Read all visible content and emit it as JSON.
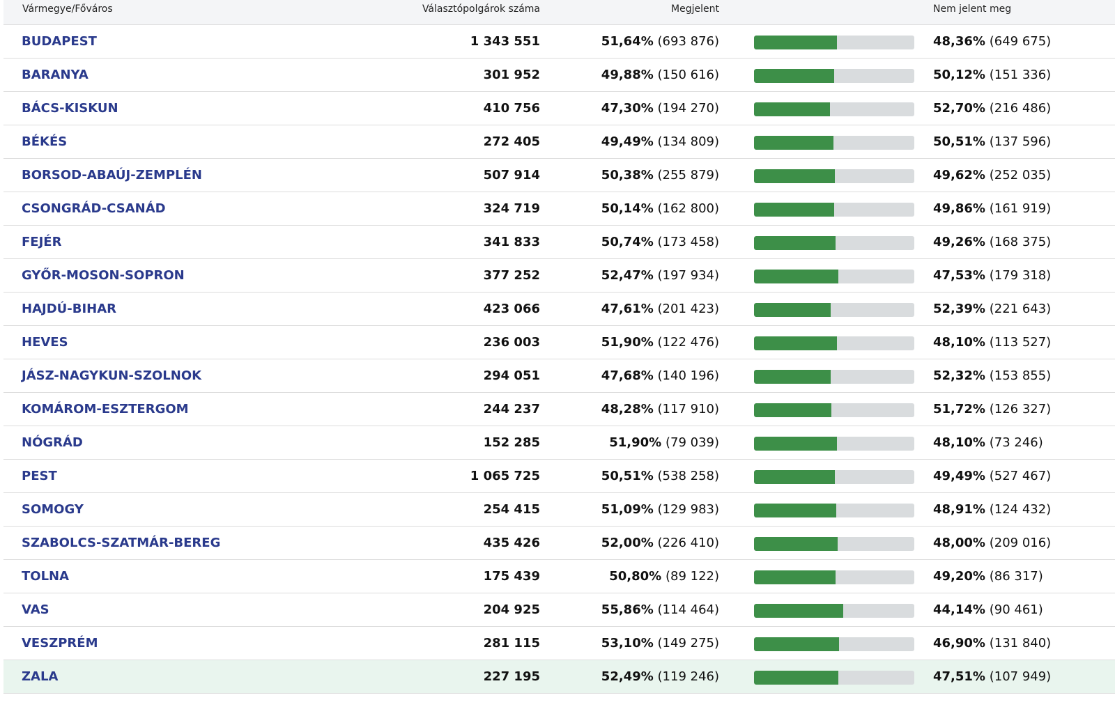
{
  "header": {
    "county": "Vármegye/Főváros",
    "voters": "Választópolgárok száma",
    "present": "Megjelent",
    "absent": "Nem jelent meg"
  },
  "rows": [
    {
      "name": "BUDAPEST",
      "voters": "1 343 551",
      "present_pct": "51,64%",
      "present_cnt": "(693 876)",
      "absent_pct": "48,36%",
      "absent_cnt": "(649 675)",
      "turnout": 51.64
    },
    {
      "name": "BARANYA",
      "voters": "301 952",
      "present_pct": "49,88%",
      "present_cnt": "(150 616)",
      "absent_pct": "50,12%",
      "absent_cnt": "(151 336)",
      "turnout": 49.88
    },
    {
      "name": "BÁCS-KISKUN",
      "voters": "410 756",
      "present_pct": "47,30%",
      "present_cnt": "(194 270)",
      "absent_pct": "52,70%",
      "absent_cnt": "(216 486)",
      "turnout": 47.3
    },
    {
      "name": "BÉKÉS",
      "voters": "272 405",
      "present_pct": "49,49%",
      "present_cnt": "(134 809)",
      "absent_pct": "50,51%",
      "absent_cnt": "(137 596)",
      "turnout": 49.49
    },
    {
      "name": "BORSOD-ABAÚJ-ZEMPLÉN",
      "voters": "507 914",
      "present_pct": "50,38%",
      "present_cnt": "(255 879)",
      "absent_pct": "49,62%",
      "absent_cnt": "(252 035)",
      "turnout": 50.38
    },
    {
      "name": "CSONGRÁD-CSANÁD",
      "voters": "324 719",
      "present_pct": "50,14%",
      "present_cnt": "(162 800)",
      "absent_pct": "49,86%",
      "absent_cnt": "(161 919)",
      "turnout": 50.14
    },
    {
      "name": "FEJÉR",
      "voters": "341 833",
      "present_pct": "50,74%",
      "present_cnt": "(173 458)",
      "absent_pct": "49,26%",
      "absent_cnt": "(168 375)",
      "turnout": 50.74
    },
    {
      "name": "GYŐR-MOSON-SOPRON",
      "voters": "377 252",
      "present_pct": "52,47%",
      "present_cnt": "(197 934)",
      "absent_pct": "47,53%",
      "absent_cnt": "(179 318)",
      "turnout": 52.47
    },
    {
      "name": "HAJDÚ-BIHAR",
      "voters": "423 066",
      "present_pct": "47,61%",
      "present_cnt": "(201 423)",
      "absent_pct": "52,39%",
      "absent_cnt": "(221 643)",
      "turnout": 47.61
    },
    {
      "name": "HEVES",
      "voters": "236 003",
      "present_pct": "51,90%",
      "present_cnt": "(122 476)",
      "absent_pct": "48,10%",
      "absent_cnt": "(113 527)",
      "turnout": 51.9
    },
    {
      "name": "JÁSZ-NAGYKUN-SZOLNOK",
      "voters": "294 051",
      "present_pct": "47,68%",
      "present_cnt": "(140 196)",
      "absent_pct": "52,32%",
      "absent_cnt": "(153 855)",
      "turnout": 47.68
    },
    {
      "name": "KOMÁROM-ESZTERGOM",
      "voters": "244 237",
      "present_pct": "48,28%",
      "present_cnt": "(117 910)",
      "absent_pct": "51,72%",
      "absent_cnt": "(126 327)",
      "turnout": 48.28
    },
    {
      "name": "NÓGRÁD",
      "voters": "152 285",
      "present_pct": "51,90%",
      "present_cnt": "(79 039)",
      "absent_pct": "48,10%",
      "absent_cnt": "(73 246)",
      "turnout": 51.9
    },
    {
      "name": "PEST",
      "voters": "1 065 725",
      "present_pct": "50,51%",
      "present_cnt": "(538 258)",
      "absent_pct": "49,49%",
      "absent_cnt": "(527 467)",
      "turnout": 50.51
    },
    {
      "name": "SOMOGY",
      "voters": "254 415",
      "present_pct": "51,09%",
      "present_cnt": "(129 983)",
      "absent_pct": "48,91%",
      "absent_cnt": "(124 432)",
      "turnout": 51.09
    },
    {
      "name": "SZABOLCS-SZATMÁR-BEREG",
      "voters": "435 426",
      "present_pct": "52,00%",
      "present_cnt": "(226 410)",
      "absent_pct": "48,00%",
      "absent_cnt": "(209 016)",
      "turnout": 52.0
    },
    {
      "name": "TOLNA",
      "voters": "175 439",
      "present_pct": "50,80%",
      "present_cnt": "(89 122)",
      "absent_pct": "49,20%",
      "absent_cnt": "(86 317)",
      "turnout": 50.8
    },
    {
      "name": "VAS",
      "voters": "204 925",
      "present_pct": "55,86%",
      "present_cnt": "(114 464)",
      "absent_pct": "44,14%",
      "absent_cnt": "(90 461)",
      "turnout": 55.86
    },
    {
      "name": "VESZPRÉM",
      "voters": "281 115",
      "present_pct": "53,10%",
      "present_cnt": "(149 275)",
      "absent_pct": "46,90%",
      "absent_cnt": "(131 840)",
      "turnout": 53.1
    },
    {
      "name": "ZALA",
      "voters": "227 195",
      "present_pct": "52,49%",
      "present_cnt": "(119 246)",
      "absent_pct": "47,51%",
      "absent_cnt": "(107 949)",
      "turnout": 52.49,
      "highlighted": true
    }
  ],
  "colors": {
    "link": "#2a3a8c",
    "bar_fill": "#3d8f48",
    "bar_track": "#d9dcde",
    "highlight_row": "#e9f5ee"
  }
}
